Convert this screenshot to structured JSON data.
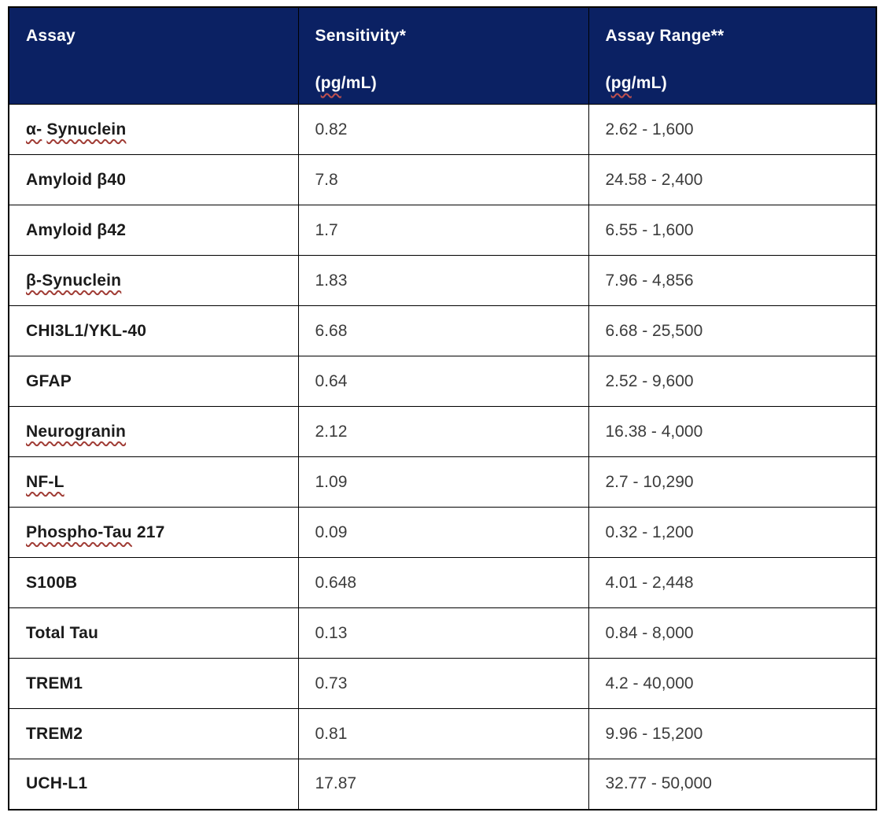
{
  "table": {
    "colors": {
      "header_bg": "#0B2163",
      "header_text": "#ffffff",
      "squiggle": "#a03c35",
      "border": "#000000"
    },
    "header": {
      "assay": "Assay",
      "sensitivity": "Sensitivity*",
      "range": "Assay Range**",
      "unit_open": "(",
      "unit_pg": "pg",
      "unit_rest": "/mL)"
    },
    "rows": [
      {
        "assay": [
          {
            "t": "α-",
            "s": true
          },
          {
            "t": "Synuclein",
            "s": true
          }
        ],
        "sensitivity": "0.82",
        "range": "2.62 - 1,600"
      },
      {
        "assay": [
          {
            "t": "Amyloid",
            "s": false
          },
          {
            "t": "β40",
            "s": false
          }
        ],
        "sensitivity": "7.8",
        "range": "24.58 - 2,400"
      },
      {
        "assay": [
          {
            "t": "Amyloid",
            "s": false
          },
          {
            "t": "β42",
            "s": false
          }
        ],
        "sensitivity": "1.7",
        "range": "6.55 - 1,600"
      },
      {
        "assay": [
          {
            "t": "β-Synuclein",
            "s": true
          }
        ],
        "sensitivity": "1.83",
        "range": "7.96 - 4,856"
      },
      {
        "assay": [
          {
            "t": "CHI3L1/YKL-40",
            "s": false
          }
        ],
        "sensitivity": "6.68",
        "range": "6.68 - 25,500"
      },
      {
        "assay": [
          {
            "t": "GFAP",
            "s": false
          }
        ],
        "sensitivity": "0.64",
        "range": "2.52 - 9,600"
      },
      {
        "assay": [
          {
            "t": "Neurogranin",
            "s": true
          }
        ],
        "sensitivity": "2.12",
        "range": "16.38 - 4,000"
      },
      {
        "assay": [
          {
            "t": "NF-L",
            "s": true
          }
        ],
        "sensitivity": "1.09",
        "range": "2.7 - 10,290"
      },
      {
        "assay": [
          {
            "t": "Phospho-Tau",
            "s": true
          },
          {
            "t": "217",
            "s": false
          }
        ],
        "sensitivity": "0.09",
        "range": "0.32 - 1,200"
      },
      {
        "assay": [
          {
            "t": "S100B",
            "s": false
          }
        ],
        "sensitivity": "0.648",
        "range": "4.01 - 2,448"
      },
      {
        "assay": [
          {
            "t": "Total",
            "s": false
          },
          {
            "t": "Tau",
            "s": false
          }
        ],
        "sensitivity": "0.13",
        "range": "0.84 - 8,000"
      },
      {
        "assay": [
          {
            "t": "TREM1",
            "s": false
          }
        ],
        "sensitivity": "0.73",
        "range": "4.2 - 40,000"
      },
      {
        "assay": [
          {
            "t": "TREM2",
            "s": false
          }
        ],
        "sensitivity": "0.81",
        "range": "9.96 - 15,200"
      },
      {
        "assay": [
          {
            "t": "UCH-L1",
            "s": false
          }
        ],
        "sensitivity": "17.87",
        "range": "32.77 - 50,000"
      }
    ]
  }
}
